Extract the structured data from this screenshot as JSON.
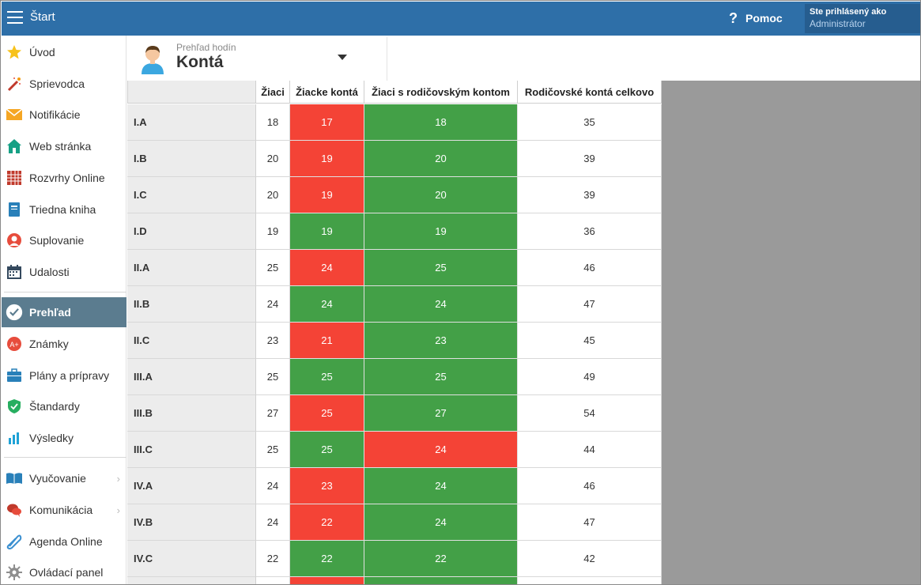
{
  "topbar": {
    "title": "Štart",
    "help_label": "Pomoc",
    "login_title": "Ste prihlásený ako",
    "login_user": "Administrátor"
  },
  "sidebar": {
    "items": [
      {
        "label": "Úvod",
        "icon": "star-icon"
      },
      {
        "label": "Sprievodca",
        "icon": "magic-wand-icon"
      },
      {
        "label": "Notifikácie",
        "icon": "envelope-icon"
      },
      {
        "label": "Web stránka",
        "icon": "house-icon"
      },
      {
        "label": "Rozvrhy Online",
        "icon": "timetable-icon"
      },
      {
        "label": "Triedna kniha",
        "icon": "notebook-icon"
      },
      {
        "label": "Suplovanie",
        "icon": "person-icon"
      },
      {
        "label": "Udalosti",
        "icon": "calendar-icon"
      },
      {
        "label": "Prehľad",
        "icon": "check-badge-icon"
      },
      {
        "label": "Známky",
        "icon": "grade-icon"
      },
      {
        "label": "Plány a prípravy",
        "icon": "briefcase-icon"
      },
      {
        "label": "Štandardy",
        "icon": "shield-check-icon"
      },
      {
        "label": "Výsledky",
        "icon": "bar-chart-icon"
      },
      {
        "label": "Vyučovanie",
        "icon": "open-book-icon"
      },
      {
        "label": "Komunikácia",
        "icon": "chat-icon"
      },
      {
        "label": "Agenda Online",
        "icon": "paperclip-icon"
      },
      {
        "label": "Ovládací panel",
        "icon": "gear-icon"
      }
    ]
  },
  "header": {
    "subtitle": "Prehľad hodín",
    "title": "Kontá"
  },
  "table": {
    "columns": [
      "",
      "Žiaci",
      "Žiacke kontá",
      "Žiaci s rodičovským kontom",
      "Rodičovské kontá celkovo"
    ],
    "rows": [
      {
        "class": "I.A",
        "ziaci": "18",
        "ziacke": "17",
        "ziacke_status": "red",
        "rodic": "18",
        "rodic_status": "green",
        "celkovo": "35"
      },
      {
        "class": "I.B",
        "ziaci": "20",
        "ziacke": "19",
        "ziacke_status": "red",
        "rodic": "20",
        "rodic_status": "green",
        "celkovo": "39"
      },
      {
        "class": "I.C",
        "ziaci": "20",
        "ziacke": "19",
        "ziacke_status": "red",
        "rodic": "20",
        "rodic_status": "green",
        "celkovo": "39"
      },
      {
        "class": "I.D",
        "ziaci": "19",
        "ziacke": "19",
        "ziacke_status": "green",
        "rodic": "19",
        "rodic_status": "green",
        "celkovo": "36"
      },
      {
        "class": "II.A",
        "ziaci": "25",
        "ziacke": "24",
        "ziacke_status": "red",
        "rodic": "25",
        "rodic_status": "green",
        "celkovo": "46"
      },
      {
        "class": "II.B",
        "ziaci": "24",
        "ziacke": "24",
        "ziacke_status": "green",
        "rodic": "24",
        "rodic_status": "green",
        "celkovo": "47"
      },
      {
        "class": "II.C",
        "ziaci": "23",
        "ziacke": "21",
        "ziacke_status": "red",
        "rodic": "23",
        "rodic_status": "green",
        "celkovo": "45"
      },
      {
        "class": "III.A",
        "ziaci": "25",
        "ziacke": "25",
        "ziacke_status": "green",
        "rodic": "25",
        "rodic_status": "green",
        "celkovo": "49"
      },
      {
        "class": "III.B",
        "ziaci": "27",
        "ziacke": "25",
        "ziacke_status": "red",
        "rodic": "27",
        "rodic_status": "green",
        "celkovo": "54"
      },
      {
        "class": "III.C",
        "ziaci": "25",
        "ziacke": "25",
        "ziacke_status": "green",
        "rodic": "24",
        "rodic_status": "red",
        "celkovo": "44"
      },
      {
        "class": "IV.A",
        "ziaci": "24",
        "ziacke": "23",
        "ziacke_status": "red",
        "rodic": "24",
        "rodic_status": "green",
        "celkovo": "46"
      },
      {
        "class": "IV.B",
        "ziaci": "24",
        "ziacke": "22",
        "ziacke_status": "red",
        "rodic": "24",
        "rodic_status": "green",
        "celkovo": "47"
      },
      {
        "class": "IV.C",
        "ziaci": "22",
        "ziacke": "22",
        "ziacke_status": "green",
        "rodic": "22",
        "rodic_status": "green",
        "celkovo": "42"
      },
      {
        "class": "",
        "ziaci": "",
        "ziacke": "",
        "ziacke_status": "red",
        "rodic": "",
        "rodic_status": "green",
        "celkovo": ""
      }
    ]
  },
  "colors": {
    "topbar": "#2e6fa8",
    "active_item": "#5b7c8f",
    "status_red": "#f44336",
    "status_green": "#43a047"
  }
}
